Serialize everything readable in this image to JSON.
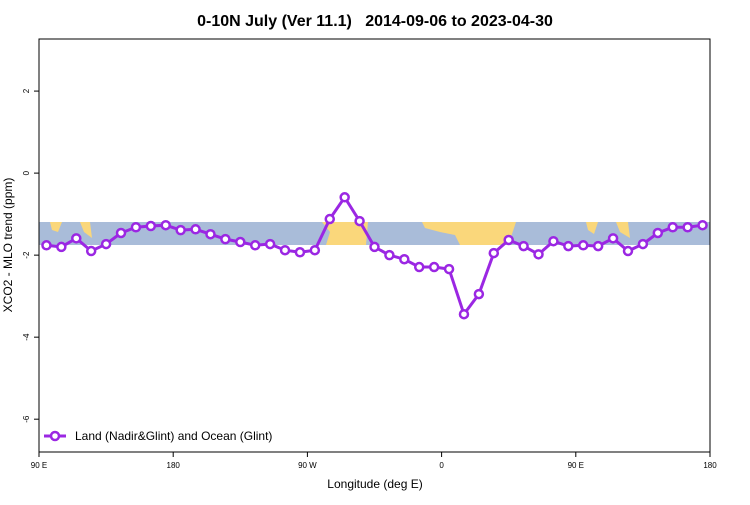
{
  "chart_data": {
    "type": "line",
    "title": "0-10N July (Ver 11.1)   2014-09-06 to 2023-04-30",
    "x_label": "Longitude (deg E)",
    "y_label": "XCO2 - MLO trend (ppm)",
    "x": [
      95,
      105,
      115,
      125,
      135,
      145,
      155,
      165,
      175,
      185,
      195,
      205,
      215,
      225,
      235,
      245,
      255,
      265,
      275,
      285,
      295,
      305,
      315,
      325,
      335,
      345,
      355,
      365,
      375,
      385,
      395,
      405,
      415,
      425,
      435,
      445,
      455,
      465,
      475,
      485,
      495,
      505,
      515,
      525,
      535
    ],
    "series": [
      {
        "name": "Land (Nadir&Glint) and Ocean (Glint)",
        "color": "#9b27e3",
        "values": [
          -1.76,
          -1.8,
          -1.59,
          -1.9,
          -1.73,
          -1.46,
          -1.32,
          -1.29,
          -1.27,
          -1.39,
          -1.37,
          -1.49,
          -1.61,
          -1.68,
          -1.76,
          -1.73,
          -1.88,
          -1.93,
          -1.88,
          -1.12,
          -0.59,
          -1.17,
          -1.8,
          -2.0,
          -2.1,
          -2.29,
          -2.29,
          -2.34,
          -3.44,
          -2.95,
          -1.95,
          -1.63,
          -1.78,
          -1.98,
          -1.66,
          -1.78,
          -1.76,
          -1.78,
          -1.59,
          -1.9,
          -1.73,
          -1.46,
          -1.32,
          -1.32,
          -1.27
        ]
      }
    ],
    "xlim": [
      90,
      540
    ],
    "xticks": [
      {
        "value": 90,
        "label": "90 E"
      },
      180,
      {
        "value": 270,
        "label": "90 W"
      },
      {
        "value": 360,
        "label": "0"
      },
      {
        "value": 450,
        "label": "90 E"
      },
      {
        "value": 540,
        "label": "180"
      }
    ],
    "ylim": [
      -6.8,
      3.27
    ],
    "yticks": [
      2,
      0,
      -2,
      -4,
      -6
    ],
    "legend": "bottom-left"
  }
}
